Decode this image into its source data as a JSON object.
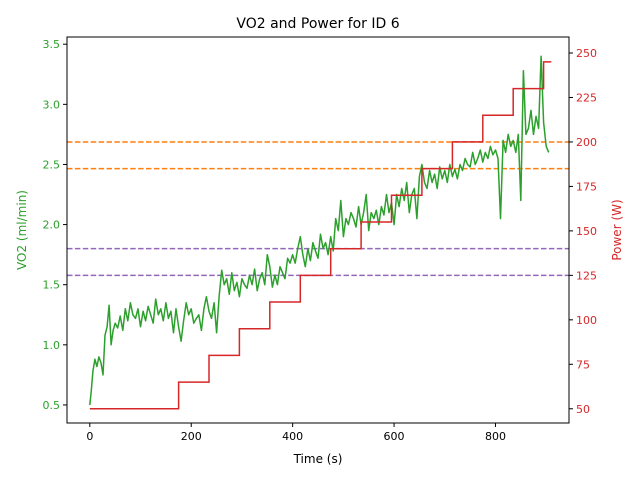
{
  "chart_data": {
    "type": "line",
    "title": "VO2 and Power for ID 6",
    "xlabel": "Time (s)",
    "ylabel_left": "VO2 (ml/min)",
    "ylabel_right": "Power (W)",
    "xlim": [
      -45,
      945
    ],
    "ylim_left": [
      0.35,
      3.56
    ],
    "ylim_right": [
      42,
      259
    ],
    "x_ticks": [
      0,
      200,
      400,
      600,
      800
    ],
    "y_left_ticks": [
      0.5,
      1.0,
      1.5,
      2.0,
      2.5,
      3.0,
      3.5
    ],
    "y_right_ticks": [
      50,
      75,
      100,
      125,
      150,
      175,
      200,
      225,
      250
    ],
    "grid": false,
    "colors": {
      "vo2": "#2ca02c",
      "power": "#d62728",
      "threshold_orange": "#ff7f0e",
      "threshold_purple": "#9467bd",
      "axis": "#000000"
    },
    "series": [
      {
        "axis": "left",
        "x": [
          0,
          3,
          6,
          10,
          14,
          18,
          22,
          26,
          30,
          34,
          38,
          42,
          46,
          50,
          55,
          60,
          65,
          70,
          75,
          80,
          85,
          90,
          95,
          100,
          105,
          110,
          115,
          120,
          125,
          130,
          135,
          140,
          145,
          150,
          155,
          160,
          165,
          170,
          175,
          180,
          185,
          190,
          195,
          200,
          205,
          210,
          215,
          220,
          225,
          230,
          235,
          240,
          245,
          250,
          255,
          260,
          265,
          270,
          275,
          280,
          285,
          290,
          295,
          300,
          305,
          310,
          315,
          320,
          325,
          330,
          335,
          340,
          345,
          350,
          355,
          360,
          365,
          370,
          375,
          380,
          385,
          390,
          395,
          400,
          405,
          410,
          415,
          420,
          425,
          430,
          435,
          440,
          445,
          450,
          455,
          460,
          465,
          470,
          475,
          480,
          485,
          490,
          495,
          500,
          505,
          510,
          515,
          520,
          525,
          530,
          535,
          540,
          545,
          550,
          555,
          560,
          565,
          570,
          575,
          580,
          585,
          590,
          595,
          600,
          605,
          610,
          615,
          620,
          625,
          630,
          635,
          640,
          645,
          650,
          655,
          660,
          665,
          670,
          675,
          680,
          685,
          690,
          695,
          700,
          705,
          710,
          715,
          720,
          725,
          730,
          735,
          740,
          745,
          750,
          755,
          760,
          765,
          770,
          775,
          780,
          785,
          790,
          795,
          800,
          805,
          810,
          815,
          820,
          825,
          830,
          835,
          840,
          845,
          850,
          855,
          860,
          865,
          870,
          875,
          880,
          885,
          890,
          895,
          900,
          905
        ],
        "y": [
          0.5,
          0.62,
          0.78,
          0.88,
          0.82,
          0.9,
          0.85,
          0.75,
          1.08,
          1.15,
          1.33,
          1.0,
          1.12,
          1.18,
          1.14,
          1.24,
          1.12,
          1.3,
          1.2,
          1.35,
          1.25,
          1.22,
          1.3,
          1.15,
          1.28,
          1.2,
          1.32,
          1.25,
          1.18,
          1.38,
          1.25,
          1.3,
          1.2,
          1.35,
          1.22,
          1.28,
          1.1,
          1.3,
          1.15,
          1.03,
          1.2,
          1.35,
          1.25,
          1.3,
          1.18,
          1.22,
          1.25,
          1.12,
          1.3,
          1.4,
          1.28,
          1.22,
          1.35,
          1.1,
          1.4,
          1.62,
          1.5,
          1.55,
          1.42,
          1.6,
          1.45,
          1.52,
          1.4,
          1.55,
          1.5,
          1.47,
          1.58,
          1.5,
          1.63,
          1.45,
          1.55,
          1.6,
          1.5,
          1.75,
          1.65,
          1.48,
          1.58,
          1.5,
          1.65,
          1.6,
          1.55,
          1.72,
          1.68,
          1.75,
          1.68,
          1.8,
          1.9,
          1.75,
          1.65,
          1.8,
          1.7,
          1.85,
          1.78,
          1.72,
          1.92,
          1.8,
          1.85,
          1.75,
          1.9,
          1.78,
          2.05,
          1.95,
          2.2,
          1.9,
          2.05,
          2.0,
          2.1,
          2.05,
          1.98,
          2.15,
          2.0,
          2.1,
          2.25,
          1.95,
          2.1,
          2.05,
          2.12,
          2.0,
          2.15,
          2.08,
          2.25,
          2.1,
          2.18,
          2.0,
          2.25,
          2.15,
          2.3,
          2.2,
          2.35,
          2.1,
          2.25,
          2.3,
          2.05,
          2.4,
          2.5,
          2.35,
          2.3,
          2.45,
          2.35,
          2.42,
          2.3,
          2.48,
          2.38,
          2.45,
          2.35,
          2.5,
          2.4,
          2.46,
          2.38,
          2.5,
          2.45,
          2.55,
          2.5,
          2.48,
          2.6,
          2.5,
          2.55,
          2.62,
          2.52,
          2.6,
          2.55,
          2.65,
          2.58,
          2.62,
          2.55,
          2.05,
          2.7,
          2.6,
          2.75,
          2.65,
          2.7,
          2.6,
          2.75,
          2.2,
          3.28,
          2.75,
          2.8,
          2.95,
          2.75,
          2.9,
          2.8,
          3.4,
          2.85,
          2.65,
          2.6
        ]
      },
      {
        "axis": "right",
        "steps": [
          [
            0,
            50
          ],
          [
            175,
            50
          ],
          [
            175,
            65
          ],
          [
            235,
            65
          ],
          [
            235,
            80
          ],
          [
            295,
            80
          ],
          [
            295,
            95
          ],
          [
            355,
            95
          ],
          [
            355,
            110
          ],
          [
            415,
            110
          ],
          [
            415,
            125
          ],
          [
            475,
            125
          ],
          [
            475,
            140
          ],
          [
            535,
            140
          ],
          [
            535,
            155
          ],
          [
            595,
            155
          ],
          [
            595,
            170
          ],
          [
            655,
            170
          ],
          [
            655,
            185
          ],
          [
            715,
            185
          ],
          [
            715,
            200
          ],
          [
            775,
            200
          ],
          [
            775,
            215
          ],
          [
            835,
            215
          ],
          [
            835,
            230
          ],
          [
            895,
            230
          ],
          [
            895,
            245
          ],
          [
            910,
            245
          ]
        ]
      }
    ],
    "reference_lines": [
      {
        "axis": "right",
        "y": 200,
        "color": "#ff7f0e"
      },
      {
        "axis": "right",
        "y": 185,
        "color": "#ff7f0e"
      },
      {
        "axis": "right",
        "y": 140,
        "color": "#9467bd"
      },
      {
        "axis": "right",
        "y": 125,
        "color": "#9467bd"
      }
    ]
  }
}
